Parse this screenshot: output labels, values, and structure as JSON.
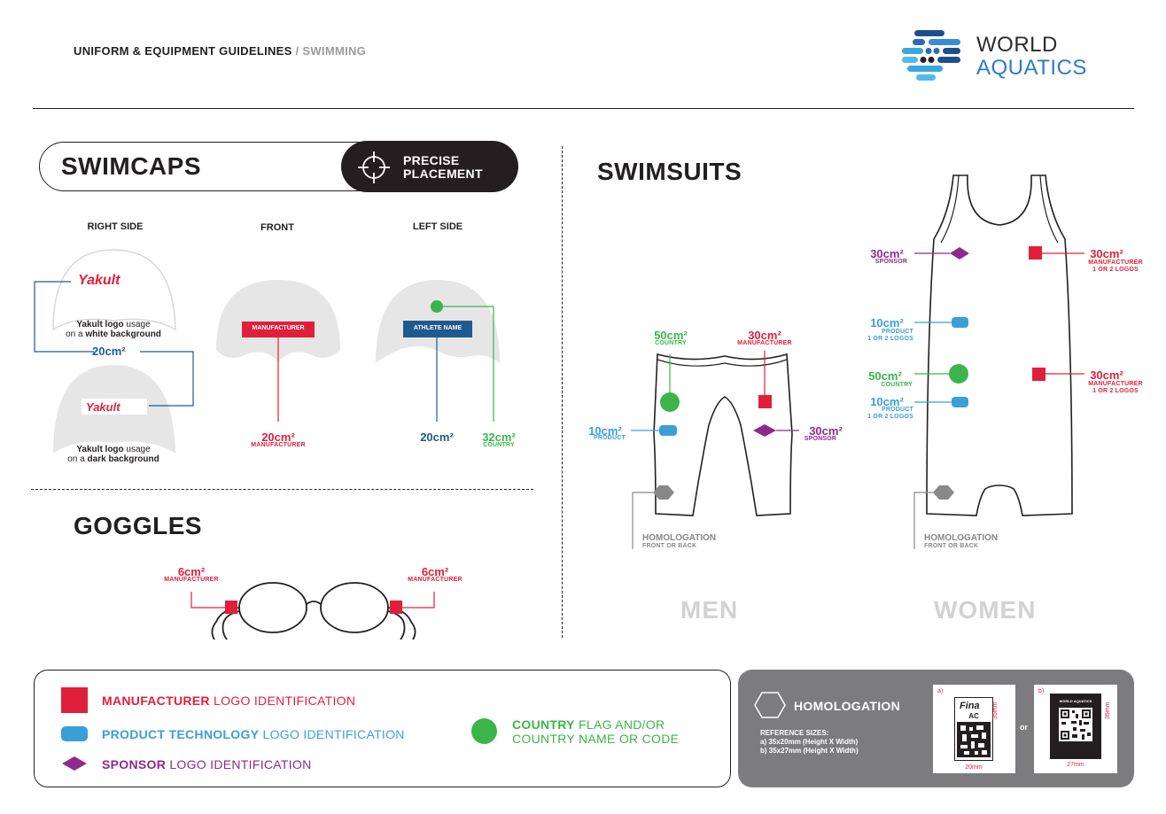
{
  "header": {
    "title": "UNIFORM & EQUIPMENT GUIDELINES",
    "separator": " / ",
    "subtitle": "SWIMMING",
    "brand_line1": "WORLD",
    "brand_line2": "AQUATICS"
  },
  "swimcaps": {
    "title": "SWIMCAPS",
    "badge_line1": "PRECISE",
    "badge_line2": "PLACEMENT",
    "col_right": "RIGHT SIDE",
    "col_front": "FRONT",
    "col_left": "LEFT SIDE",
    "yakult": "Yakult",
    "white_note_1a": "Yakult logo",
    "white_note_1b": " usage",
    "white_note_2a": "on a ",
    "white_note_2b": "white background",
    "dark_note_1a": "Yakult logo",
    "dark_note_1b": " usage",
    "dark_note_2a": "on a ",
    "dark_note_2b": "dark background",
    "yakult_size": "20cm²",
    "manufacturer_tag": "MANUFACTURER",
    "athlete_tag": "ATHLETE NAME",
    "front_size": "20cm²",
    "front_size_label": "MANUFACTURER",
    "left_size_name": "20cm²",
    "left_size_country": "32cm²",
    "left_size_country_label": "COUNTRY"
  },
  "goggles": {
    "title": "GOGGLES",
    "left_size": "6cm²",
    "left_label": "MANUFACTURER",
    "right_size": "6cm²",
    "right_label": "MANUFACTURER"
  },
  "swimsuits": {
    "title": "SWIMSUITS",
    "men": {
      "country_size": "50cm²",
      "country_label": "COUNTRY",
      "manufacturer_size": "30cm²",
      "manufacturer_label": "MANUFACTURER",
      "product_size": "10cm²",
      "product_label": "PRODUCT",
      "sponsor_size": "30cm²",
      "sponsor_label": "SPONSOR",
      "homologation": "HOMOLOGATION",
      "homologation_sub": "FRONT OR BACK",
      "caption": "MEN"
    },
    "women": {
      "sponsor_size": "30cm²",
      "sponsor_label": "SPONSOR",
      "manufacturer1_size": "30cm²",
      "manufacturer1_label": "MANUFACTURER",
      "manufacturer1_sub": "1 OR 2 LOGOS",
      "product1_size": "10cm²",
      "product1_label": "PRODUCT",
      "product1_sub": "1 OR 2 LOGOS",
      "country_size": "50cm²",
      "country_label": "COUNTRY",
      "product2_size": "10cm²",
      "product2_label": "PRODUCT",
      "product2_sub": "1 OR 2 LOGOS",
      "manufacturer2_size": "30cm²",
      "manufacturer2_label": "MANUFACTURER",
      "manufacturer2_sub": "1 OR 2 LOGOS",
      "homologation": "HOMOLOGATION",
      "homologation_sub": "FRONT OR BACK",
      "caption": "WOMEN"
    }
  },
  "legend": {
    "manufacturer_bold": "MANUFACTURER",
    "manufacturer_rest": " LOGO IDENTIFICATION",
    "product_bold": "PRODUCT TECHNOLOGY",
    "product_rest": " LOGO IDENTIFICATION",
    "sponsor_bold": "SPONSOR",
    "sponsor_rest": " LOGO IDENTIFICATION",
    "country_bold": "COUNTRY",
    "country_rest1": " FLAG AND/OR",
    "country_rest2": "COUNTRY NAME OR CODE"
  },
  "homologation": {
    "title": "HOMOLOGATION",
    "ref_title": "REFERENCE SIZES:",
    "ref_a": "a) 35x20mm (Height X Width)",
    "ref_b": "b) 35x27mm  (Height X Width)",
    "card_a_letter": "a)",
    "card_a_logo": "Fina",
    "card_a_code": "AC",
    "card_a_width": "20mm",
    "card_a_height": "35mm",
    "or": "or",
    "card_b_letter": "b)",
    "card_b_brand": "WORLD AQUATICS",
    "card_b_width": "27mm",
    "card_b_height": "35mm"
  },
  "colors": {
    "manufacturer": "#e0203a",
    "product": "#3a9fd8",
    "sponsor": "#8e2a8e",
    "country": "#3ab54a",
    "athlete": "#1f5a8f",
    "dark": "#231f20"
  }
}
